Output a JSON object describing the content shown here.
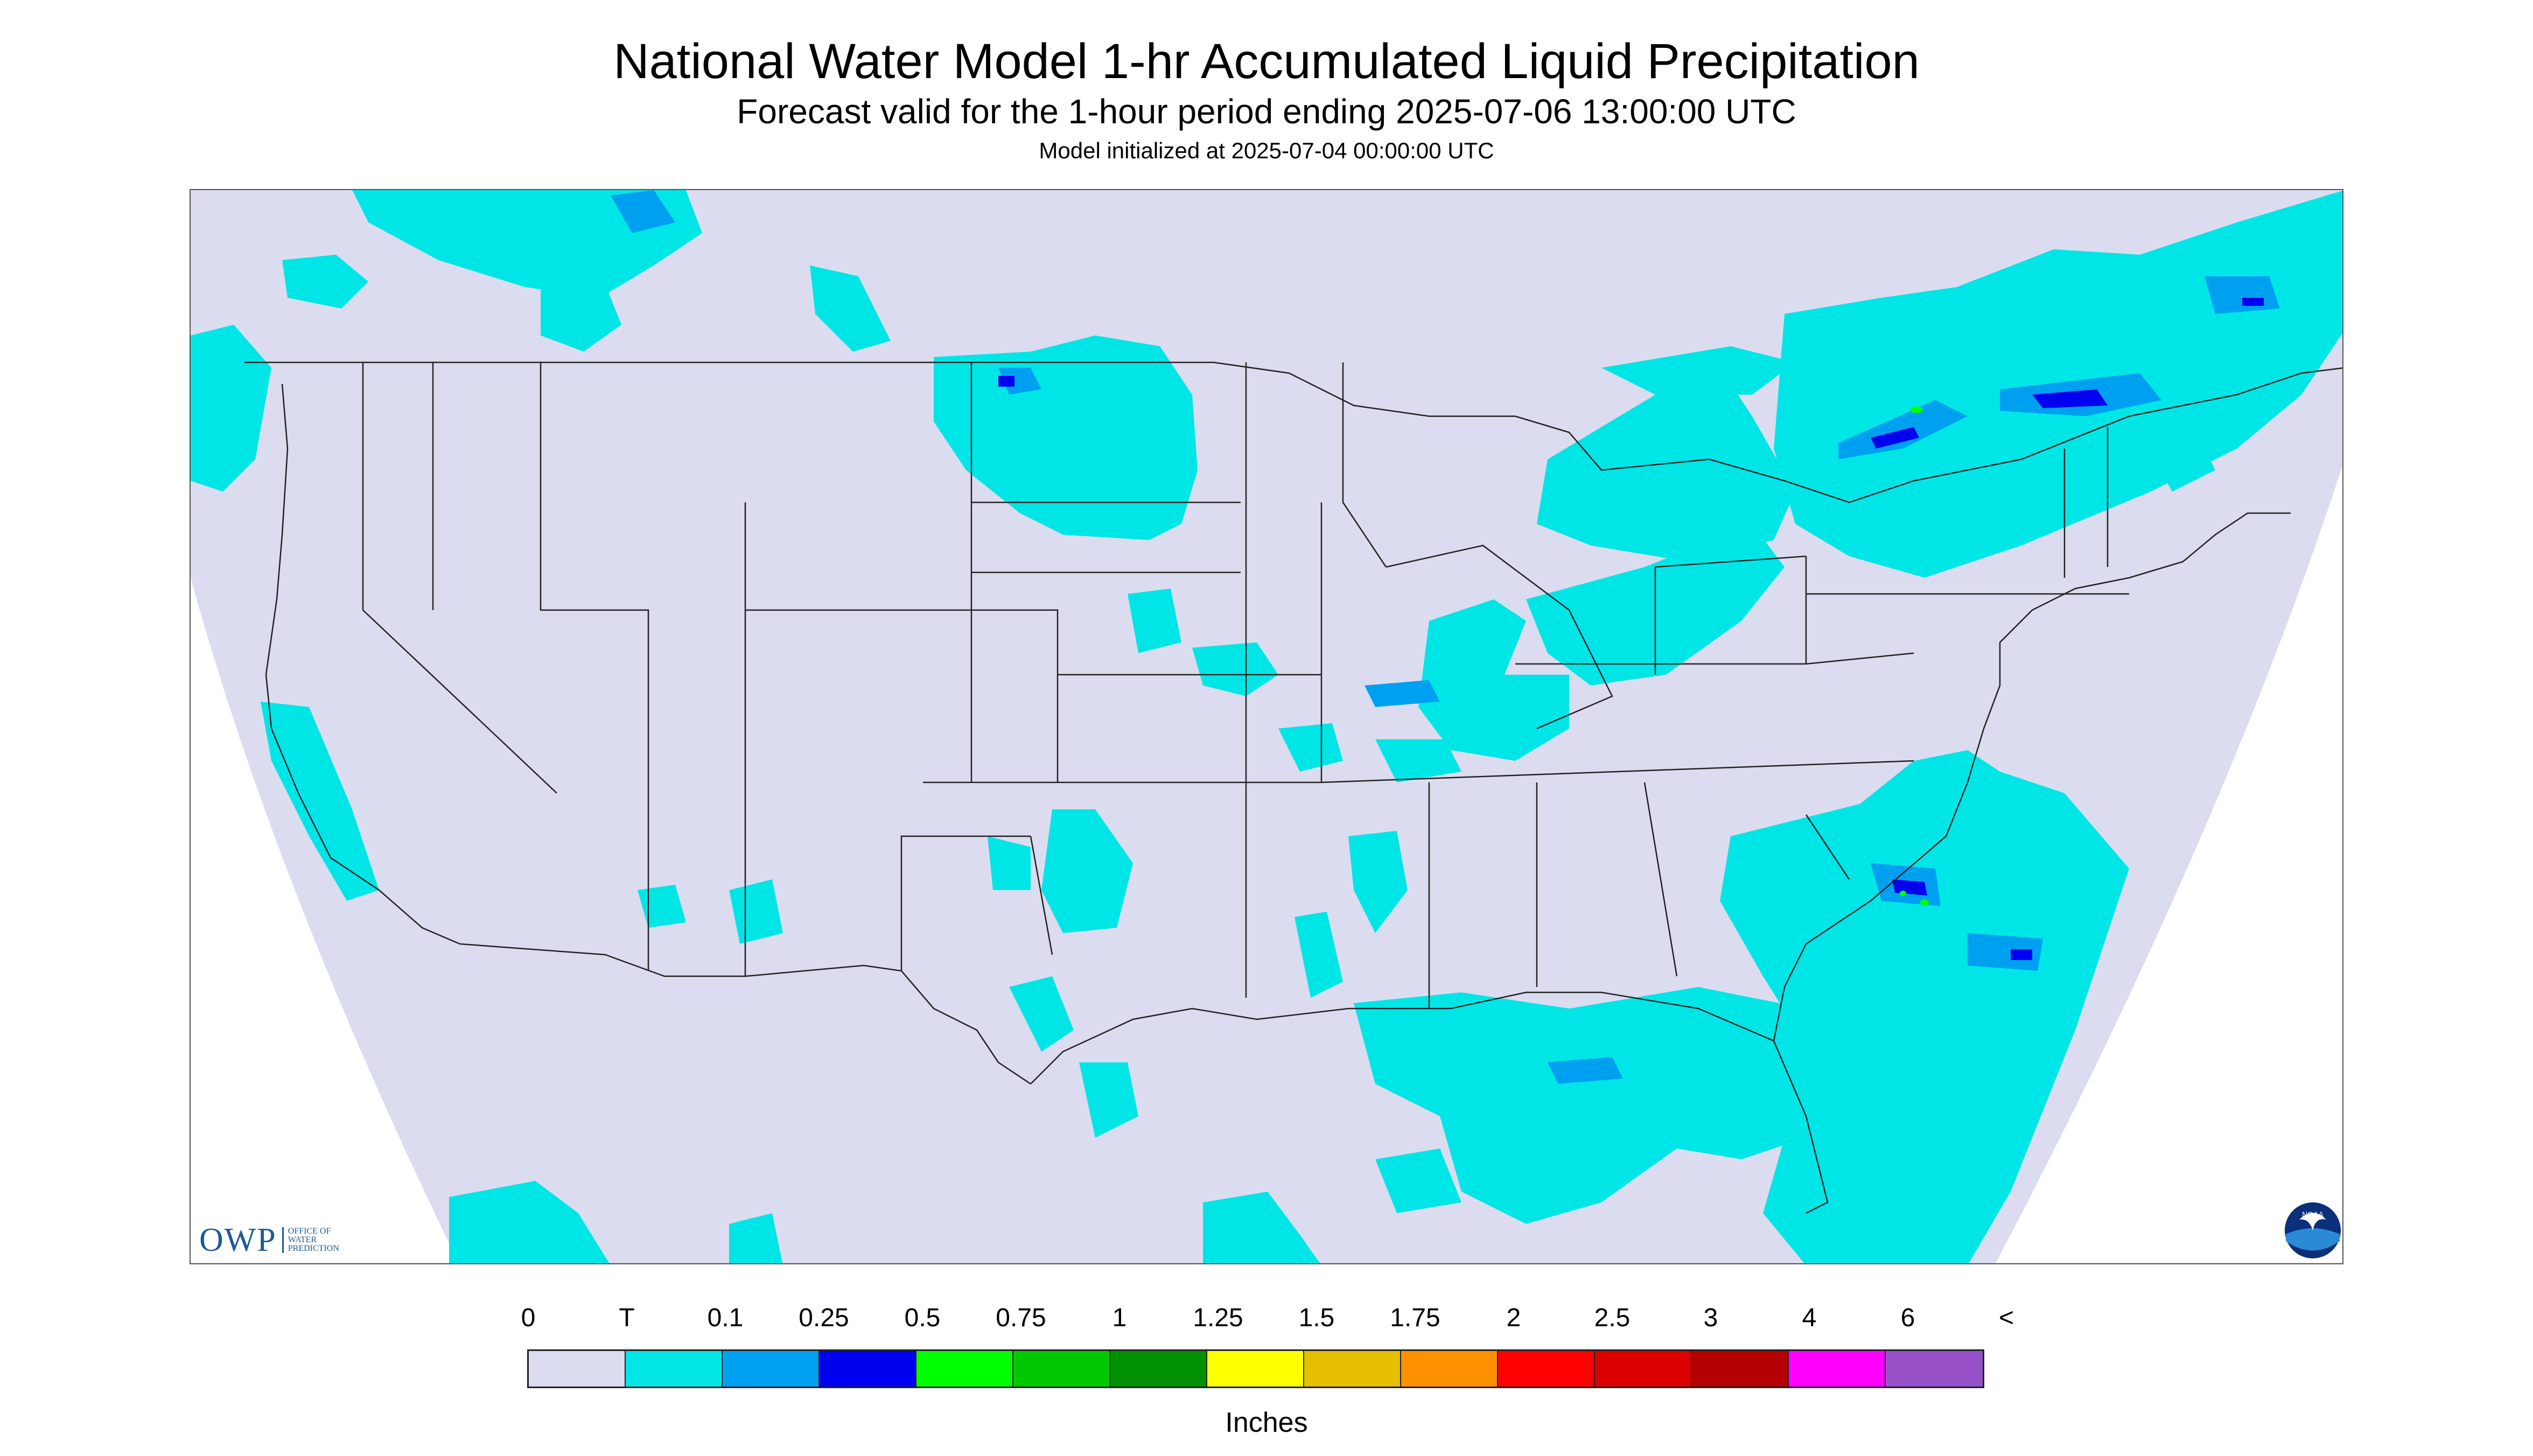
{
  "title": "National Water Model 1-hr Accumulated Liquid Precipitation",
  "subtitle": "Forecast valid for the 1-hour period ending 2025-07-06 13:00:00 UTC",
  "init_line": "Model initialized at 2025-07-04 00:00:00 UTC",
  "logos": {
    "owp_mark": "OWP",
    "owp_text_lines": [
      "OFFICE OF",
      "WATER",
      "PREDICTION"
    ],
    "noaa": "NOAA"
  },
  "legend": {
    "labels": [
      "0",
      "T",
      "0.1",
      "0.25",
      "0.5",
      "0.75",
      "1",
      "1.25",
      "1.5",
      "1.75",
      "2",
      "2.5",
      "3",
      "4",
      "6",
      "<"
    ],
    "colors": [
      "#dcdcf0",
      "#00e6e6",
      "#00a0f0",
      "#0000f0",
      "#00ff00",
      "#00c800",
      "#009000",
      "#ffff00",
      "#e6c000",
      "#ff9000",
      "#ff0000",
      "#dc0000",
      "#b40000",
      "#ff00ff",
      "#9650c8"
    ],
    "units": "Inches"
  },
  "colors": {
    "no_data": "#ffffff",
    "zero": "#dcdcf0",
    "trace": "#00e6e6",
    "light": "#00a0f0",
    "moderate": "#0000f0",
    "heavy": "#00ff00",
    "boundaries": "#222222"
  }
}
